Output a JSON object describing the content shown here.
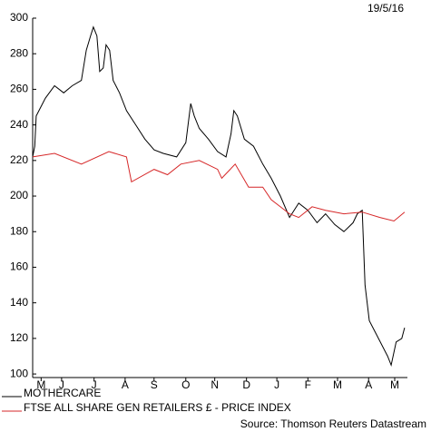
{
  "chart_data": {
    "type": "line",
    "date": "19/5/16",
    "source": "Source: Thomson Reuters Datastream",
    "xlim": [
      0,
      53.1
    ],
    "xticks": [
      {
        "value": 1.2,
        "label": "M"
      },
      {
        "value": 4.1,
        "label": "J"
      },
      {
        "value": 8.7,
        "label": "J"
      },
      {
        "value": 13.1,
        "label": "A"
      },
      {
        "value": 17.2,
        "label": "S"
      },
      {
        "value": 21.7,
        "label": "O"
      },
      {
        "value": 25.8,
        "label": "N"
      },
      {
        "value": 30.3,
        "label": "D"
      },
      {
        "value": 34.6,
        "label": "J"
      },
      {
        "value": 39,
        "label": "F"
      },
      {
        "value": 43.2,
        "label": "M"
      },
      {
        "value": 47.6,
        "label": "A"
      },
      {
        "value": 51.3,
        "label": "M"
      }
    ],
    "ylim": [
      98,
      300
    ],
    "yticks": [
      100,
      120,
      140,
      160,
      180,
      200,
      220,
      240,
      260,
      280,
      300
    ],
    "series": [
      {
        "name": "MOTHERCARE",
        "color": "#000000",
        "x": [
          0,
          0.3,
          0.5,
          1.8,
          3.1,
          4.4,
          5.6,
          6.9,
          7.6,
          8.2,
          8.6,
          9.1,
          9.5,
          10,
          10.4,
          10.9,
          11.4,
          12.3,
          13.3,
          14.6,
          15.9,
          17.2,
          18.5,
          20.4,
          21.7,
          22.4,
          22.9,
          23.6,
          24.9,
          26.2,
          27.4,
          28.1,
          28.5,
          29,
          30,
          31.3,
          32.6,
          33.8,
          35.1,
          36.4,
          37.7,
          39,
          40.3,
          41.5,
          42.8,
          44.1,
          45.4,
          46,
          46.7,
          47.1,
          47.7,
          49,
          50.3,
          50.8,
          51.5,
          52.3,
          52.7
        ],
        "values": [
          222,
          228,
          245,
          255,
          262,
          258,
          262,
          265,
          282,
          290,
          295,
          290,
          270,
          272,
          285,
          282,
          265,
          258,
          248,
          240,
          232,
          226,
          224,
          222,
          230,
          252,
          245,
          238,
          232,
          225,
          222,
          235,
          248,
          245,
          232,
          228,
          218,
          210,
          200,
          188,
          196,
          192,
          185,
          190,
          184,
          180,
          185,
          190,
          192,
          150,
          130,
          120,
          110,
          105,
          118,
          120,
          126
        ]
      },
      {
        "name": "FTSE ALL SHARE GEN RETAILERS £ - PRICE INDEX",
        "color": "#d62728",
        "x": [
          0,
          3.1,
          6.9,
          10.8,
          13.3,
          14,
          17.2,
          19.1,
          21,
          23.6,
          26.2,
          26.8,
          28.7,
          30.6,
          32.6,
          33.8,
          36.4,
          37.7,
          39.6,
          41.5,
          44.1,
          46.7,
          49.2,
          51.2,
          52.7
        ],
        "values": [
          222,
          224,
          218,
          225,
          222,
          208,
          215,
          212,
          218,
          220,
          215,
          210,
          218,
          205,
          205,
          198,
          190,
          188,
          194,
          192,
          190,
          191,
          188,
          186,
          191
        ]
      }
    ]
  }
}
